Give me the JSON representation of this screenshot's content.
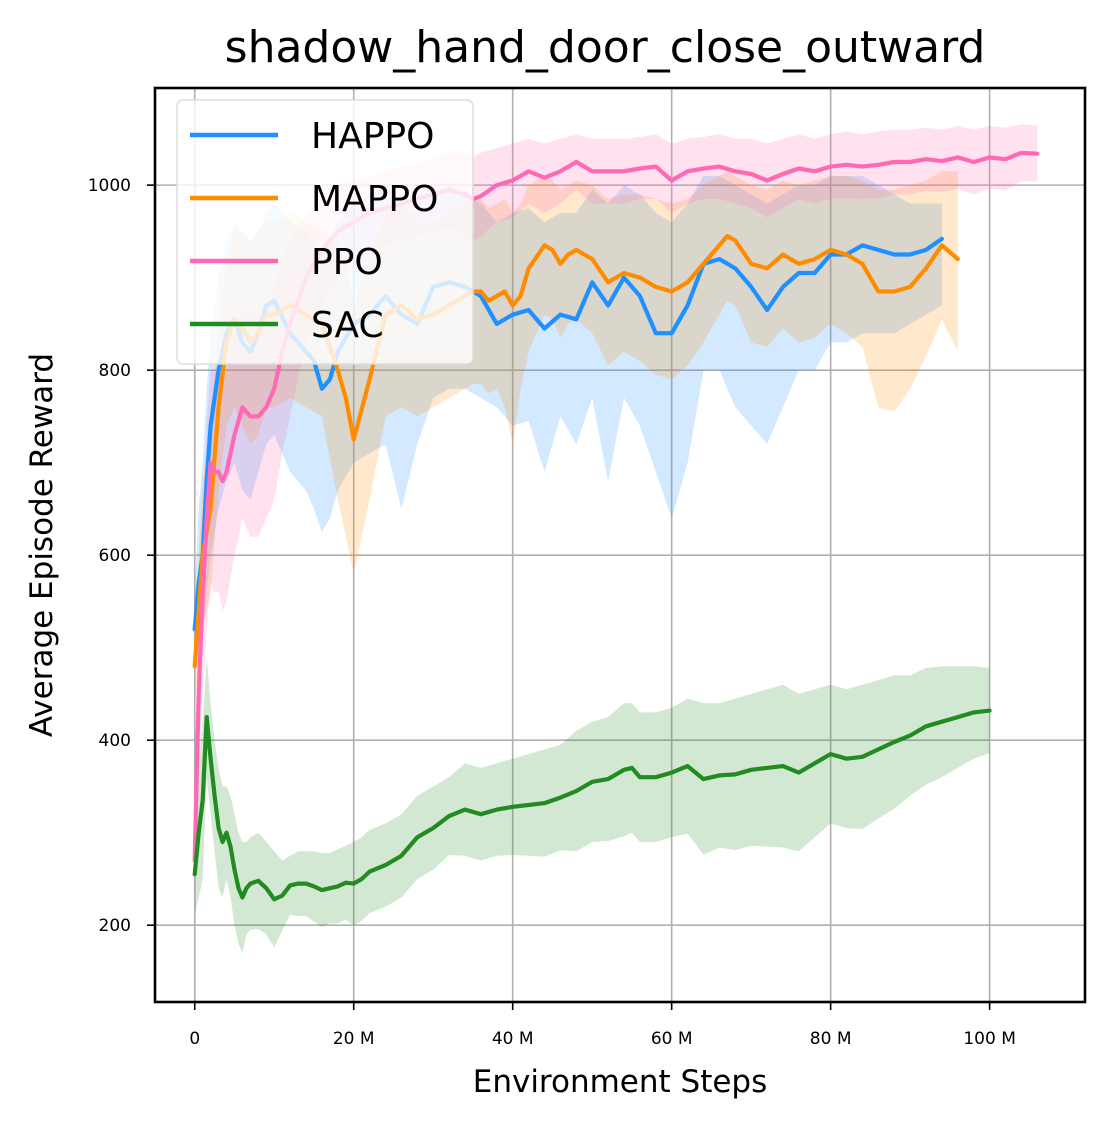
{
  "chart_data": {
    "type": "line",
    "title": "shadow_hand_door_close_outward",
    "xlabel": "Environment Steps",
    "ylabel": "Average Episode Reward",
    "xlim": [
      -5,
      112
    ],
    "ylim": [
      117,
      1105
    ],
    "grid": true,
    "legend_position": "top-left",
    "x_ticks": [
      {
        "value": 0,
        "label": "0"
      },
      {
        "value": 20,
        "label": "20 M"
      },
      {
        "value": 40,
        "label": "40 M"
      },
      {
        "value": 60,
        "label": "60 M"
      },
      {
        "value": 80,
        "label": "80 M"
      },
      {
        "value": 100,
        "label": "100 M"
      }
    ],
    "y_ticks": [
      {
        "value": 200,
        "label": "200"
      },
      {
        "value": 400,
        "label": "400"
      },
      {
        "value": 600,
        "label": "600"
      },
      {
        "value": 800,
        "label": "800"
      },
      {
        "value": 1000,
        "label": "1000"
      }
    ],
    "series": [
      {
        "name": "HAPPO",
        "color": "#1e90ff",
        "x": [
          0,
          0.5,
          1,
          1.5,
          2,
          3,
          4,
          5,
          6,
          7,
          8,
          9,
          10,
          12,
          14,
          15,
          16,
          17,
          18,
          20,
          22,
          24,
          26,
          28,
          30,
          32,
          34,
          36,
          38,
          40,
          42,
          44,
          46,
          48,
          50,
          52,
          54,
          56,
          58,
          60,
          62,
          64,
          66,
          68,
          70,
          72,
          74,
          76,
          78,
          80,
          82,
          84,
          86,
          88,
          90,
          92,
          94
        ],
        "y": [
          520,
          570,
          600,
          680,
          740,
          800,
          840,
          855,
          830,
          820,
          840,
          870,
          875,
          840,
          820,
          810,
          780,
          790,
          820,
          850,
          860,
          880,
          860,
          850,
          890,
          895,
          890,
          880,
          850,
          860,
          865,
          845,
          860,
          855,
          895,
          870,
          900,
          880,
          840,
          840,
          870,
          915,
          920,
          910,
          890,
          865,
          890,
          905,
          905,
          925,
          925,
          935,
          930,
          925,
          925,
          930,
          942
        ],
        "upper": [
          560,
          650,
          700,
          780,
          840,
          900,
          940,
          960,
          950,
          940,
          950,
          970,
          980,
          960,
          950,
          940,
          930,
          940,
          960,
          980,
          990,
          1000,
          980,
          970,
          990,
          1000,
          990,
          980,
          960,
          970,
          975,
          960,
          970,
          970,
          995,
          980,
          1000,
          990,
          970,
          960,
          980,
          1010,
          1010,
          1000,
          990,
          980,
          990,
          1000,
          1000,
          1010,
          1010,
          1010,
          1000,
          990,
          980,
          980,
          980
        ],
        "lower": [
          480,
          500,
          520,
          560,
          600,
          650,
          680,
          700,
          670,
          660,
          690,
          720,
          730,
          690,
          670,
          650,
          625,
          640,
          670,
          700,
          710,
          720,
          650,
          720,
          770,
          780,
          780,
          770,
          760,
          740,
          745,
          690,
          750,
          720,
          770,
          680,
          770,
          740,
          690,
          640,
          700,
          800,
          800,
          760,
          740,
          720,
          760,
          800,
          800,
          830,
          830,
          840,
          840,
          840,
          850,
          860,
          870
        ]
      },
      {
        "name": "MAPPO",
        "color": "#ff8c00",
        "x": [
          0,
          0.5,
          1,
          2,
          3,
          4,
          5,
          6,
          7,
          8,
          9,
          10,
          12,
          14,
          16,
          18,
          19,
          20,
          22,
          24,
          26,
          28,
          30,
          32,
          34,
          35,
          36,
          37,
          38,
          39,
          40,
          41,
          42,
          44,
          45,
          46,
          47,
          48,
          50,
          52,
          54,
          56,
          58,
          60,
          62,
          64,
          66,
          67,
          68,
          70,
          72,
          74,
          76,
          78,
          80,
          82,
          84,
          86,
          88,
          90,
          92,
          94,
          96
        ],
        "y": [
          480,
          540,
          600,
          650,
          760,
          830,
          855,
          845,
          830,
          840,
          860,
          860,
          870,
          860,
          850,
          800,
          770,
          725,
          790,
          860,
          870,
          855,
          860,
          870,
          880,
          885,
          885,
          875,
          880,
          885,
          870,
          880,
          910,
          935,
          930,
          915,
          925,
          930,
          920,
          895,
          905,
          900,
          890,
          885,
          895,
          915,
          935,
          945,
          940,
          915,
          910,
          925,
          915,
          920,
          930,
          925,
          915,
          885,
          885,
          890,
          910,
          935,
          920
        ],
        "upper": [
          520,
          600,
          680,
          740,
          850,
          920,
          950,
          950,
          940,
          950,
          960,
          960,
          970,
          960,
          950,
          940,
          920,
          870,
          920,
          970,
          980,
          960,
          960,
          970,
          980,
          985,
          985,
          975,
          980,
          985,
          970,
          980,
          1000,
          1010,
          1005,
          995,
          1000,
          1005,
          1000,
          985,
          990,
          990,
          985,
          980,
          985,
          1000,
          1010,
          1015,
          1010,
          1000,
          995,
          1005,
          1000,
          1005,
          1010,
          1010,
          1005,
          995,
          995,
          1000,
          1005,
          1015,
          1015
        ],
        "lower": [
          440,
          480,
          520,
          560,
          670,
          740,
          760,
          740,
          720,
          730,
          760,
          760,
          770,
          760,
          750,
          660,
          620,
          580,
          660,
          750,
          760,
          750,
          760,
          770,
          780,
          785,
          785,
          775,
          780,
          760,
          720,
          780,
          820,
          860,
          855,
          835,
          850,
          855,
          840,
          805,
          820,
          810,
          795,
          790,
          805,
          830,
          860,
          875,
          870,
          830,
          825,
          845,
          830,
          835,
          850,
          840,
          825,
          760,
          755,
          780,
          815,
          855,
          820
        ]
      },
      {
        "name": "PPO",
        "color": "#ff69b4",
        "x": [
          0,
          0.5,
          1,
          1.5,
          2,
          2.5,
          3,
          3.5,
          4,
          5,
          6,
          7,
          8,
          9,
          10,
          11,
          12,
          14,
          16,
          18,
          20,
          22,
          24,
          26,
          28,
          30,
          32,
          34,
          35,
          36,
          38,
          40,
          42,
          44,
          46,
          48,
          50,
          52,
          54,
          56,
          58,
          60,
          62,
          64,
          66,
          68,
          70,
          72,
          74,
          76,
          78,
          80,
          82,
          84,
          86,
          88,
          90,
          92,
          94,
          96,
          98,
          100,
          102,
          104,
          106
        ],
        "y": [
          270,
          450,
          560,
          640,
          700,
          690,
          690,
          680,
          690,
          730,
          760,
          750,
          750,
          760,
          780,
          820,
          850,
          900,
          930,
          950,
          960,
          970,
          975,
          980,
          985,
          990,
          995,
          990,
          985,
          988,
          1000,
          1005,
          1015,
          1008,
          1015,
          1025,
          1015,
          1015,
          1015,
          1018,
          1020,
          1005,
          1015,
          1018,
          1020,
          1015,
          1012,
          1005,
          1012,
          1018,
          1015,
          1020,
          1022,
          1020,
          1022,
          1025,
          1025,
          1028,
          1026,
          1030,
          1025,
          1030,
          1028,
          1035,
          1034
        ],
        "upper": [
          320,
          540,
          650,
          740,
          800,
          800,
          800,
          790,
          800,
          840,
          870,
          860,
          860,
          870,
          890,
          920,
          940,
          970,
          990,
          1000,
          1005,
          1010,
          1015,
          1020,
          1025,
          1030,
          1035,
          1035,
          1030,
          1035,
          1040,
          1045,
          1050,
          1045,
          1050,
          1055,
          1050,
          1050,
          1050,
          1052,
          1055,
          1045,
          1050,
          1052,
          1055,
          1050,
          1050,
          1045,
          1050,
          1055,
          1050,
          1055,
          1058,
          1055,
          1058,
          1060,
          1060,
          1062,
          1060,
          1064,
          1060,
          1064,
          1062,
          1066,
          1064
        ],
        "lower": [
          220,
          360,
          450,
          520,
          570,
          560,
          560,
          540,
          550,
          600,
          640,
          620,
          620,
          640,
          660,
          710,
          750,
          830,
          870,
          900,
          910,
          925,
          935,
          940,
          945,
          950,
          955,
          945,
          940,
          945,
          960,
          965,
          980,
          970,
          980,
          995,
          980,
          980,
          980,
          985,
          985,
          970,
          980,
          985,
          985,
          980,
          975,
          965,
          975,
          985,
          980,
          985,
          986,
          985,
          986,
          990,
          990,
          994,
          992,
          996,
          990,
          996,
          994,
          1004,
          1004
        ]
      },
      {
        "name": "SAC",
        "color": "#228b22",
        "x": [
          0,
          0.5,
          1,
          1.5,
          2,
          2.5,
          3,
          3.5,
          4,
          4.5,
          5,
          5.5,
          6,
          6.5,
          7,
          8,
          9,
          10,
          11,
          12,
          13,
          14,
          15,
          16,
          17,
          18,
          19,
          20,
          21,
          22,
          24,
          26,
          28,
          30,
          32,
          34,
          36,
          38,
          40,
          42,
          44,
          46,
          48,
          50,
          52,
          54,
          55,
          56,
          58,
          60,
          62,
          64,
          66,
          68,
          70,
          72,
          74,
          76,
          78,
          80,
          82,
          84,
          86,
          88,
          90,
          92,
          94,
          96,
          98,
          100
        ],
        "y": [
          255,
          300,
          335,
          425,
          380,
          340,
          305,
          290,
          300,
          285,
          260,
          240,
          230,
          240,
          245,
          248,
          240,
          228,
          232,
          243,
          245,
          245,
          242,
          238,
          240,
          242,
          246,
          245,
          250,
          258,
          265,
          275,
          295,
          305,
          318,
          325,
          320,
          325,
          328,
          330,
          332,
          338,
          345,
          355,
          358,
          368,
          370,
          360,
          360,
          365,
          372,
          358,
          362,
          363,
          368,
          370,
          372,
          365,
          375,
          385,
          380,
          382,
          390,
          398,
          405,
          415,
          420,
          425,
          430,
          432
        ],
        "upper": [
          300,
          370,
          420,
          490,
          440,
          400,
          370,
          350,
          350,
          340,
          320,
          300,
          290,
          290,
          295,
          300,
          290,
          280,
          270,
          275,
          280,
          280,
          280,
          278,
          278,
          282,
          286,
          290,
          295,
          303,
          310,
          320,
          340,
          350,
          360,
          375,
          370,
          375,
          380,
          385,
          390,
          395,
          410,
          420,
          425,
          440,
          440,
          430,
          430,
          435,
          445,
          440,
          440,
          445,
          450,
          455,
          460,
          450,
          455,
          460,
          455,
          460,
          465,
          470,
          470,
          478,
          480,
          480,
          480,
          478
        ],
        "lower": [
          210,
          230,
          250,
          360,
          320,
          280,
          240,
          230,
          250,
          230,
          200,
          180,
          170,
          190,
          195,
          196,
          190,
          176,
          194,
          211,
          210,
          210,
          204,
          198,
          202,
          202,
          206,
          200,
          205,
          213,
          220,
          230,
          250,
          260,
          276,
          275,
          270,
          275,
          276,
          275,
          274,
          281,
          280,
          290,
          291,
          296,
          300,
          290,
          290,
          295,
          299,
          276,
          284,
          281,
          286,
          285,
          284,
          280,
          295,
          310,
          305,
          304,
          315,
          326,
          340,
          352,
          360,
          370,
          380,
          386
        ]
      }
    ]
  }
}
